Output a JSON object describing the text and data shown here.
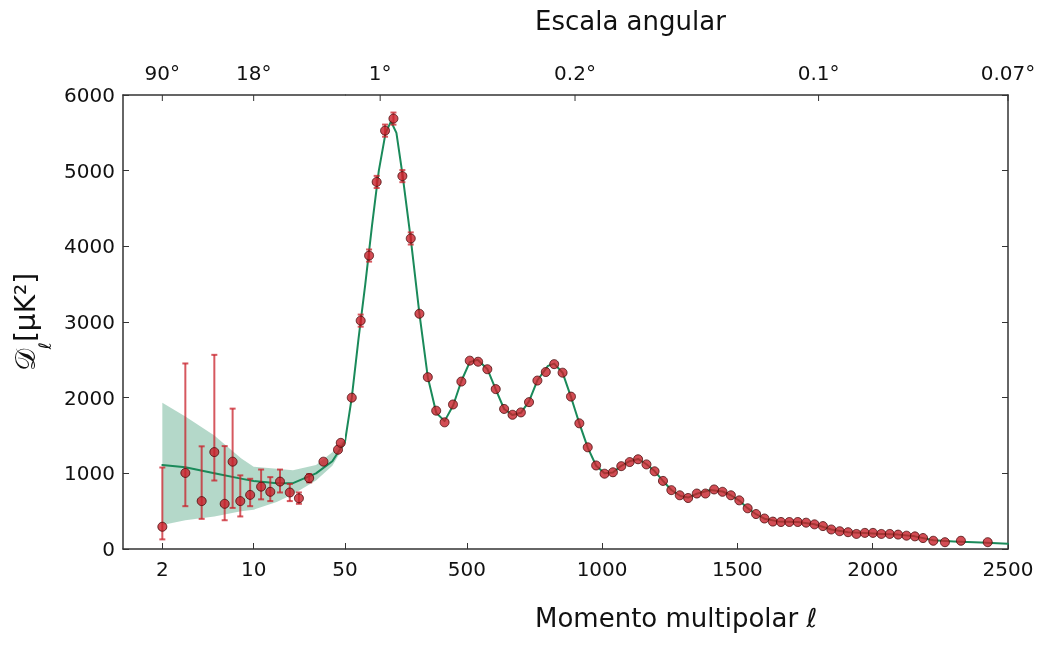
{
  "chart_data": [
    {
      "type": "scatter",
      "ylabel": "𝒟$_{ℓ}$[μK²]",
      "log": "x",
      "marker": "circle",
      "xlim": [
        1,
        50
      ],
      "xticks": [
        2,
        10,
        50
      ],
      "annotations": [
        {
          "text": "90°",
          "x": 2
        },
        {
          "text": "18°",
          "x": 10
        }
      ],
      "ylim": [
        0,
        6000
      ],
      "yticks": [
        0,
        1000,
        2000,
        3000,
        4000,
        5000,
        6000
      ],
      "series": [
        {
          "type": "line",
          "color": "#1a8a5a",
          "marker": "none",
          "line_style": "solid",
          "x": [
            2,
            3,
            5,
            8,
            10,
            15,
            20,
            30,
            40,
            50
          ],
          "values": [
            1110,
            1080,
            1000,
            930,
            900,
            870,
            870,
            1000,
            1160,
            1420
          ],
          "lower": [
            317,
            380,
            430,
            498,
            520,
            620,
            724,
            905,
            1100,
            1380
          ],
          "upper": [
            1932,
            1750,
            1500,
            1200,
            1086,
            1060,
            1040,
            1109,
            1280,
            1460
          ]
        },
        {
          "color": "#c8202a",
          "x": [
            2,
            3,
            4,
            5,
            6,
            6.9,
            7.9,
            9.4,
            11.4,
            13.4,
            15.9,
            18.9,
            22.2,
            26.6,
            34.2,
            44.2,
            46.4
          ],
          "values": [
            294,
            1005,
            633,
            1281,
            597,
            1154,
            633,
            715,
            824,
            756,
            891,
            747,
            670,
            937,
            1154,
            1312,
            1403
          ],
          "errors": [
            [
              127,
              1077
            ],
            [
              566,
              2452
            ],
            [
              398,
              1357
            ],
            [
              905,
              2566
            ],
            [
              380,
              1360
            ],
            [
              543,
              1855
            ],
            [
              430,
              973
            ],
            [
              566,
              928
            ],
            [
              656,
              1050
            ],
            [
              633,
              950
            ],
            [
              747,
              1050
            ],
            [
              633,
              860
            ],
            [
              597,
              747
            ],
            [
              880,
              990
            ],
            null,
            null,
            null
          ]
        }
      ]
    },
    {
      "type": "scatter",
      "xlabel": "Momento multipolar ℓ",
      "tick_labels": "x",
      "marker": "circle",
      "xlim": [
        50,
        2500
      ],
      "xticks": [
        500,
        1000,
        1500,
        2000,
        2500
      ],
      "annotations": [
        "Escala angular",
        {
          "text": "1°",
          "x": 180
        },
        {
          "text": "0.2°",
          "x": 900
        },
        {
          "text": "0.1°",
          "x": 1800
        },
        {
          "text": "0.07°",
          "x": 2500
        }
      ],
      "ylim": [
        0,
        6000
      ],
      "yticks": [
        0,
        1000,
        2000,
        3000,
        4000,
        5000,
        6000
      ],
      "series": [
        {
          "type": "line",
          "color": "#1a8a5a",
          "marker": "none",
          "line_style": "solid",
          "x": [
            50,
            75,
            100,
            125,
            150,
            175,
            200,
            220,
            240,
            262,
            293,
            325,
            356,
            387,
            418,
            450,
            480,
            511,
            540,
            576,
            607,
            638,
            669,
            700,
            730,
            761,
            800,
            823,
            854,
            885,
            900,
            916,
            947,
            978,
            1009,
            1040,
            1071,
            1102,
            1133,
            1164,
            1194,
            1225,
            1256,
            1290,
            1318,
            1350,
            1400,
            1445,
            1476,
            1507,
            1538,
            1569,
            1600,
            1650,
            1723,
            1785,
            1800,
            1847,
            1909,
            1971,
            2032,
            2094,
            2156,
            2224,
            2300,
            2400,
            2500
          ],
          "values": [
            1420,
            2000,
            2780,
            3500,
            4280,
            5000,
            5500,
            5650,
            5500,
            4960,
            4100,
            3110,
            2270,
            1800,
            1690,
            1900,
            2220,
            2470,
            2500,
            2380,
            2110,
            1850,
            1770,
            1800,
            1950,
            2230,
            2420,
            2450,
            2330,
            2010,
            1840,
            1660,
            1340,
            1100,
            1000,
            1010,
            1100,
            1160,
            1190,
            1120,
            1030,
            900,
            780,
            700,
            680,
            730,
            780,
            760,
            710,
            640,
            540,
            460,
            400,
            365,
            357,
            326,
            310,
            258,
            222,
            210,
            199,
            190,
            167,
            115,
            100,
            85,
            70
          ]
        },
        {
          "color": "#c8202a",
          "x": [
            75,
            108,
            139,
            167,
            198,
            229,
            262,
            293,
            325,
            356,
            387,
            418,
            449,
            480,
            511,
            542,
            576,
            607,
            638,
            669,
            700,
            730,
            761,
            792,
            823,
            854,
            885,
            916,
            947,
            978,
            1009,
            1040,
            1071,
            1102,
            1133,
            1164,
            1194,
            1225,
            1256,
            1287,
            1318,
            1350,
            1382,
            1414,
            1445,
            1476,
            1507,
            1538,
            1569,
            1600,
            1631,
            1661,
            1692,
            1723,
            1754,
            1785,
            1816,
            1847,
            1878,
            1909,
            1940,
            1971,
            2001,
            2032,
            2063,
            2094,
            2125,
            2156,
            2186,
            2224,
            2267,
            2326,
            2425
          ],
          "values": [
            2000,
            3018,
            3878,
            4851,
            5529,
            5688,
            4928,
            4104,
            3109,
            2271,
            1828,
            1674,
            1910,
            2213,
            2489,
            2475,
            2376,
            2113,
            1851,
            1774,
            1805,
            1941,
            2226,
            2339,
            2443,
            2330,
            2014,
            1661,
            1344,
            1104,
            995,
            1014,
            1095,
            1149,
            1186,
            1118,
            1027,
            900,
            778,
            710,
            674,
            733,
            733,
            787,
            756,
            710,
            643,
            538,
            462,
            403,
            362,
            357,
            357,
            357,
            348,
            326,
            303,
            258,
            235,
            222,
            199,
            213,
            213,
            199,
            199,
            190,
            176,
            167,
            145,
            109,
            90,
            109,
            90
          ],
          "errors": [
            null,
            80,
            80,
            80,
            80,
            80,
            80,
            80,
            null,
            null,
            null,
            null,
            null,
            null,
            null,
            null,
            null,
            null,
            null,
            null,
            null,
            null,
            null,
            null,
            null,
            null,
            null,
            null,
            null,
            null,
            null,
            null,
            null,
            null,
            null,
            null,
            null,
            null,
            null,
            null,
            null,
            null,
            null,
            null,
            null,
            null,
            null,
            null,
            null,
            null,
            null,
            null,
            null,
            null,
            null,
            null,
            null,
            null,
            null,
            null,
            null,
            null,
            null,
            null,
            null,
            null,
            null,
            null,
            null,
            null,
            null,
            null,
            null
          ]
        }
      ]
    }
  ]
}
